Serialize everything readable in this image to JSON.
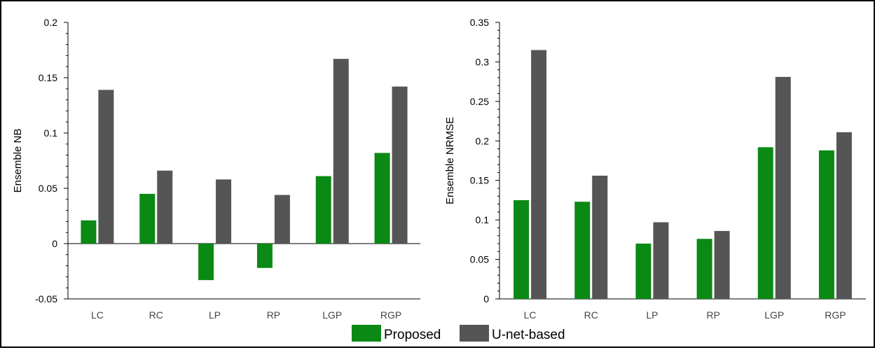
{
  "colors": {
    "proposed": "#0a8a14",
    "unet": "#555555",
    "axis": "#000000"
  },
  "legend": {
    "items": [
      {
        "label": "Proposed",
        "color": "#0a8a14"
      },
      {
        "label": "U-net-based",
        "color": "#555555"
      }
    ]
  },
  "chart_data": [
    {
      "type": "bar",
      "categories": [
        "LC",
        "RC",
        "LP",
        "RP",
        "LGP",
        "RGP"
      ],
      "series": [
        {
          "name": "Proposed",
          "values": [
            0.021,
            0.045,
            -0.033,
            -0.022,
            0.061,
            0.082
          ]
        },
        {
          "name": "U-net-based",
          "values": [
            0.139,
            0.066,
            0.058,
            0.044,
            0.167,
            0.142
          ]
        }
      ],
      "ylabel": "Ensemble NB",
      "ylim": [
        -0.05,
        0.2
      ],
      "yticks": [
        -0.05,
        0,
        0.05,
        0.1,
        0.15,
        0.2
      ],
      "ytick_labels": [
        "-0.05",
        "0",
        "0.05",
        "0.1",
        "0.15",
        "0.2"
      ]
    },
    {
      "type": "bar",
      "categories": [
        "LC",
        "RC",
        "LP",
        "RP",
        "LGP",
        "RGP"
      ],
      "series": [
        {
          "name": "Proposed",
          "values": [
            0.125,
            0.123,
            0.07,
            0.076,
            0.192,
            0.188
          ]
        },
        {
          "name": "U-net-based",
          "values": [
            0.315,
            0.156,
            0.097,
            0.086,
            0.281,
            0.211
          ]
        }
      ],
      "ylabel": "Ensemble NRMSE",
      "ylim": [
        0,
        0.35
      ],
      "yticks": [
        0,
        0.05,
        0.1,
        0.15,
        0.2,
        0.25,
        0.3,
        0.35
      ],
      "ytick_labels": [
        "0",
        "0.05",
        "0.1",
        "0.15",
        "0.2",
        "0.25",
        "0.3",
        "0.35"
      ]
    }
  ]
}
